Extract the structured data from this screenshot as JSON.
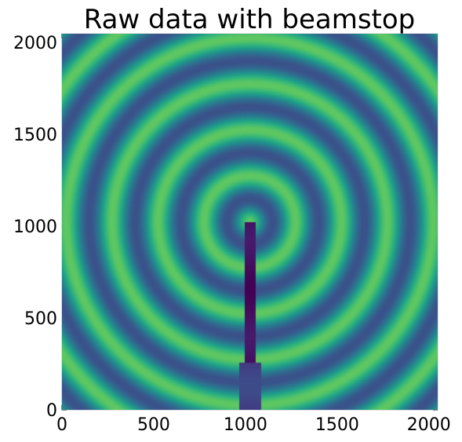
{
  "chart_data": {
    "type": "heatmap",
    "title": "Raw data with beamstop",
    "xlabel": "",
    "ylabel": "",
    "xlim": [
      0,
      2048
    ],
    "ylim": [
      0,
      2048
    ],
    "x_ticks": [
      "0",
      "500",
      "1000",
      "1500",
      "2000"
    ],
    "y_ticks": [
      "0",
      "500",
      "1000",
      "1500",
      "2000"
    ],
    "x_tick_values": [
      0,
      500,
      1000,
      1500,
      2000
    ],
    "y_tick_values": [
      0,
      500,
      1000,
      1500,
      2000
    ],
    "colormap": "viridis",
    "grid": false,
    "image": {
      "pattern": "concentric rings",
      "center": [
        1024,
        1024
      ],
      "ring_period": 250
    },
    "beamstop": {
      "arm": {
        "x_range": [
          995,
          1055
        ],
        "y_range": [
          255,
          1020
        ]
      },
      "base": {
        "x_range": [
          965,
          1085
        ],
        "y_range": [
          0,
          255
        ]
      }
    }
  }
}
